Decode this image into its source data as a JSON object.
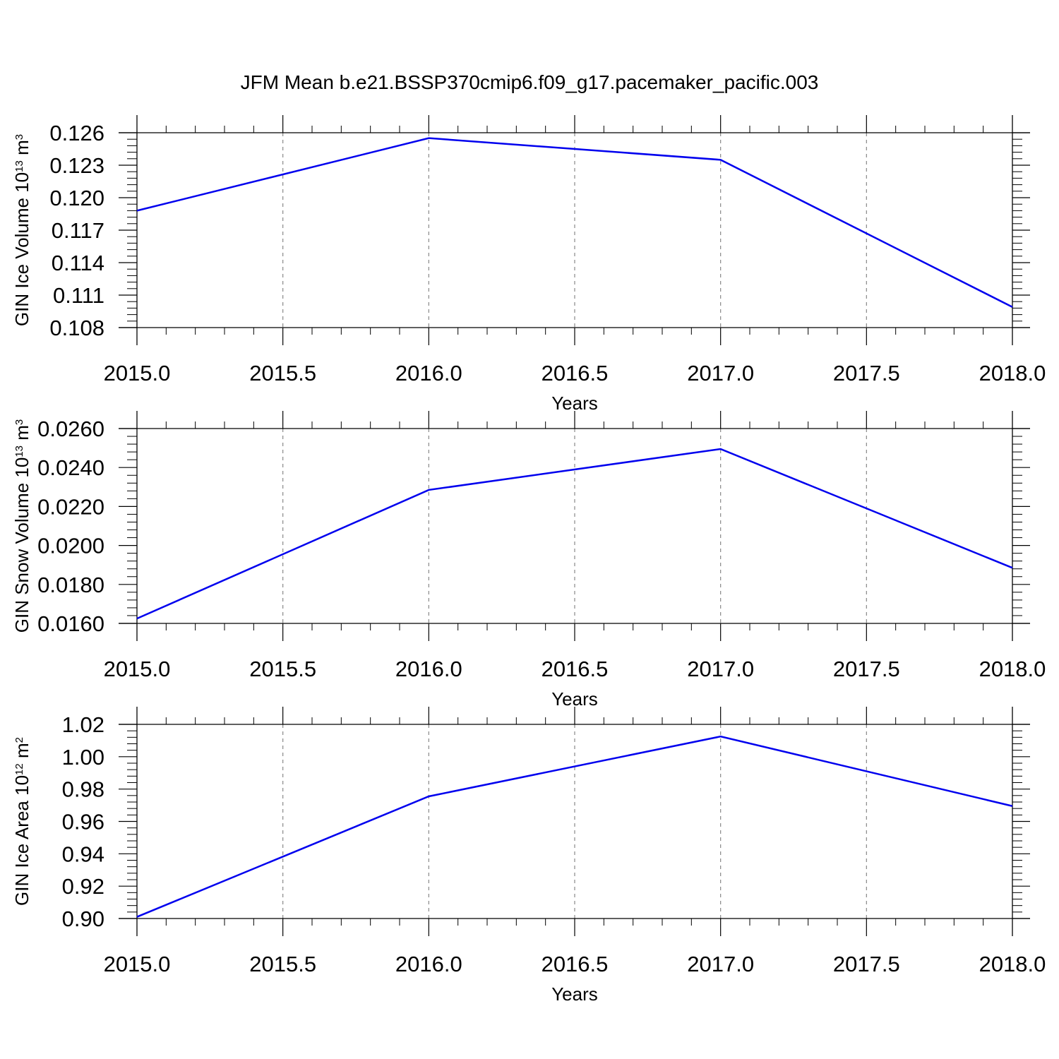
{
  "figure": {
    "title": "JFM Mean b.e21.BSSP370cmip6.f09_g17.pacemaker_pacific.003"
  },
  "chart_data": [
    {
      "type": "line",
      "xlabel": "Years",
      "ylabel": {
        "prefix": "GIN Ice Volume 10",
        "exponent": "13",
        "unit": " m",
        "unit_exponent": "3"
      },
      "xlim": [
        2015.0,
        2018.0
      ],
      "ylim": [
        0.108,
        0.126
      ],
      "x_ticks": [
        2015.0,
        2015.5,
        2016.0,
        2016.5,
        2017.0,
        2017.5,
        2018.0
      ],
      "x_tick_labels": [
        "2015.0",
        "2015.5",
        "2016.0",
        "2016.5",
        "2017.0",
        "2017.5",
        "2018.0"
      ],
      "y_ticks": [
        0.108,
        0.111,
        0.114,
        0.117,
        0.12,
        0.123,
        0.126
      ],
      "y_tick_labels": [
        "0.108",
        "0.111",
        "0.114",
        "0.117",
        "0.120",
        "0.123",
        "0.126"
      ],
      "grid": "vertical dashed at major x ticks",
      "series": [
        {
          "color": "#0000ee",
          "x": [
            2015,
            2016,
            2017,
            2018
          ],
          "y": [
            0.1188,
            0.1255,
            0.1235,
            0.1099
          ]
        }
      ]
    },
    {
      "type": "line",
      "xlabel": "Years",
      "ylabel": {
        "prefix": "GIN Snow Volume 10",
        "exponent": "13",
        "unit": " m",
        "unit_exponent": "3"
      },
      "xlim": [
        2015.0,
        2018.0
      ],
      "ylim": [
        0.016,
        0.026
      ],
      "x_ticks": [
        2015.0,
        2015.5,
        2016.0,
        2016.5,
        2017.0,
        2017.5,
        2018.0
      ],
      "x_tick_labels": [
        "2015.0",
        "2015.5",
        "2016.0",
        "2016.5",
        "2017.0",
        "2017.5",
        "2018.0"
      ],
      "y_ticks": [
        0.016,
        0.018,
        0.02,
        0.022,
        0.024,
        0.026
      ],
      "y_tick_labels": [
        "0.0160",
        "0.0180",
        "0.0200",
        "0.0220",
        "0.0240",
        "0.0260"
      ],
      "grid": "vertical dashed at major x ticks",
      "series": [
        {
          "color": "#0000ee",
          "x": [
            2015,
            2016,
            2017,
            2018
          ],
          "y": [
            0.01625,
            0.02285,
            0.02495,
            0.01885
          ]
        }
      ]
    },
    {
      "type": "line",
      "xlabel": "Years",
      "ylabel": {
        "prefix": "GIN Ice Area 10",
        "exponent": "12",
        "unit": " m",
        "unit_exponent": "2"
      },
      "xlim": [
        2015.0,
        2018.0
      ],
      "ylim": [
        0.9,
        1.02
      ],
      "x_ticks": [
        2015.0,
        2015.5,
        2016.0,
        2016.5,
        2017.0,
        2017.5,
        2018.0
      ],
      "x_tick_labels": [
        "2015.0",
        "2015.5",
        "2016.0",
        "2016.5",
        "2017.0",
        "2017.5",
        "2018.0"
      ],
      "y_ticks": [
        0.9,
        0.92,
        0.94,
        0.96,
        0.98,
        1.0,
        1.02
      ],
      "y_tick_labels": [
        "0.90",
        "0.92",
        "0.94",
        "0.96",
        "0.98",
        "1.00",
        "1.02"
      ],
      "grid": "vertical dashed at major x ticks",
      "series": [
        {
          "color": "#0000ee",
          "x": [
            2015,
            2016,
            2017,
            2018
          ],
          "y": [
            0.901,
            0.9755,
            1.0125,
            0.9695
          ]
        }
      ]
    }
  ]
}
